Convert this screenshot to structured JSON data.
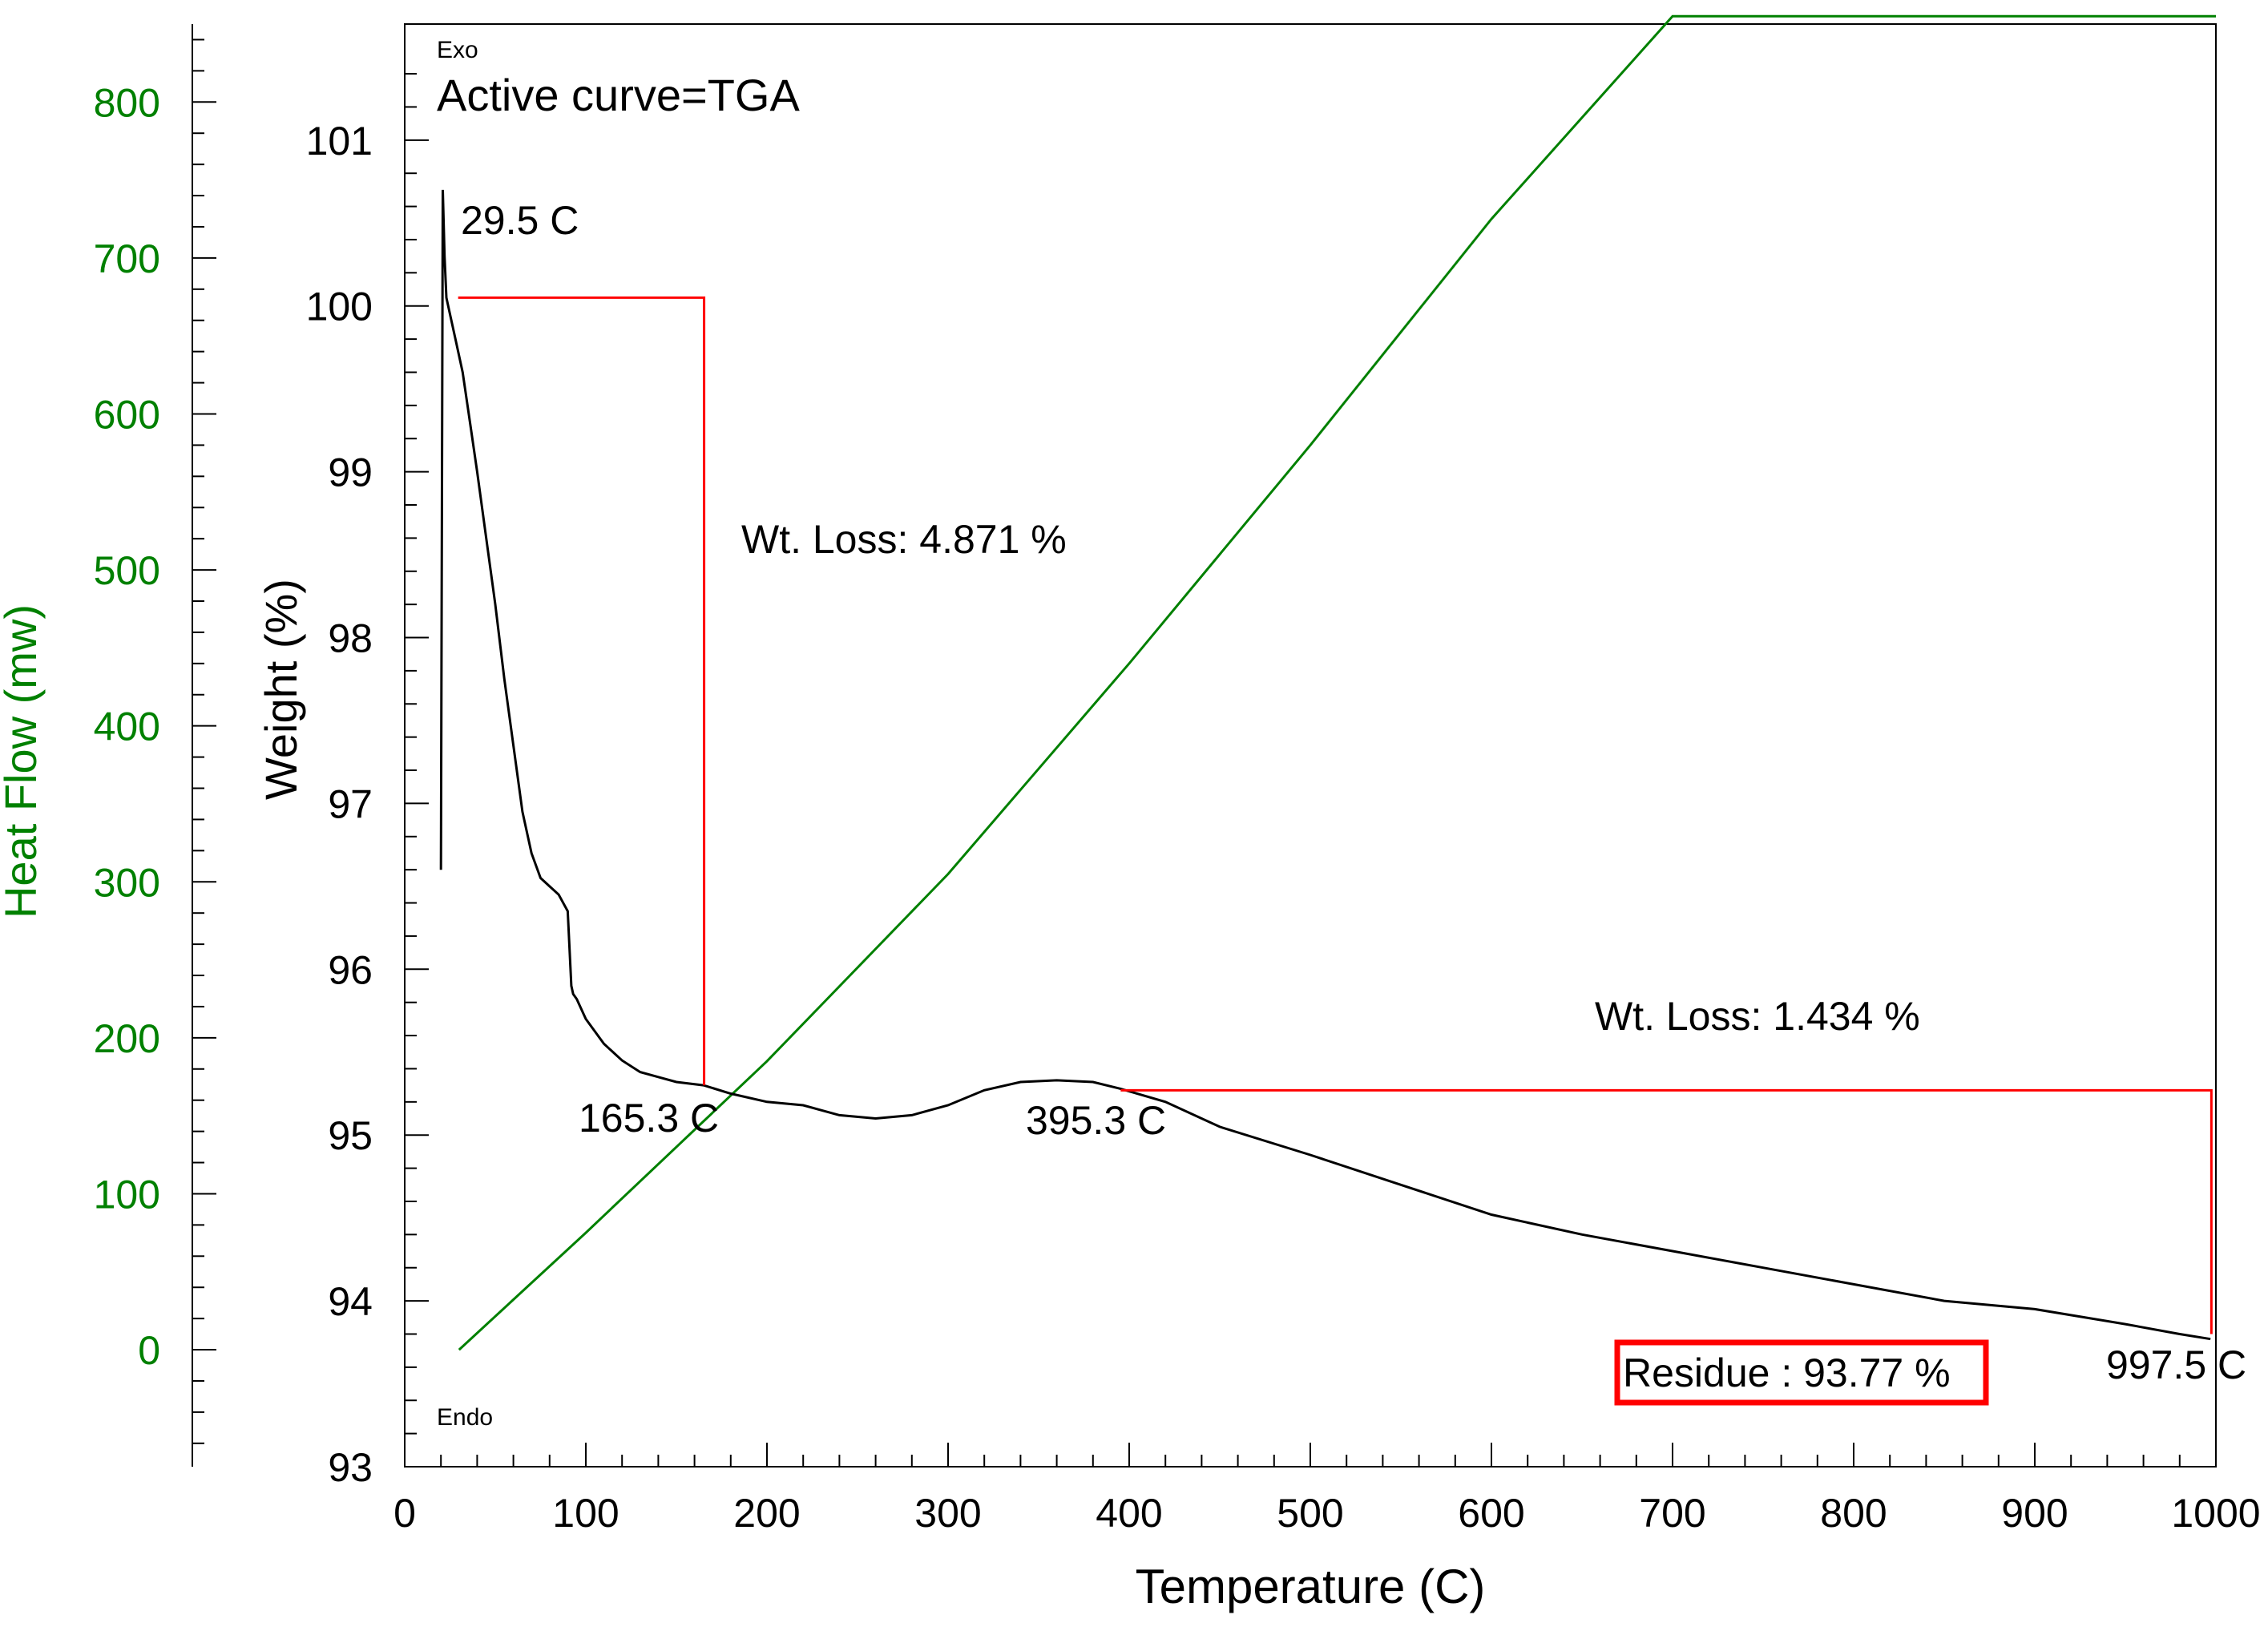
{
  "chart_data": {
    "type": "line",
    "title": "Active curve=TGA",
    "xlabel": "Temperature (C)",
    "ylabel": "Weight (%)",
    "y2label": "Heat Flow (mw)",
    "xlim": [
      0,
      1000
    ],
    "ylim": [
      93,
      101.7
    ],
    "y2lim": [
      -75,
      850
    ],
    "x_ticks": [
      0,
      100,
      200,
      300,
      400,
      500,
      600,
      700,
      800,
      900,
      1000
    ],
    "y_ticks": [
      93,
      94,
      95,
      96,
      97,
      98,
      99,
      100,
      101
    ],
    "y2_ticks": [
      0,
      100,
      200,
      300,
      400,
      500,
      600,
      700,
      800
    ],
    "exo_label": "Exo",
    "endo_label": "Endo",
    "colors": {
      "weight": "#000000",
      "heat_flow": "#008000",
      "annotation": "#ff0000",
      "axis": "#000000"
    },
    "series": [
      {
        "name": "Weight (TGA)",
        "axis": "left",
        "x": [
          20,
          21,
          22,
          23,
          25,
          28,
          32,
          36,
          40,
          45,
          50,
          55,
          60,
          65,
          70,
          75,
          80,
          85,
          90,
          92,
          93,
          95,
          100,
          110,
          120,
          130,
          140,
          150,
          165,
          180,
          200,
          220,
          240,
          260,
          280,
          300,
          320,
          340,
          360,
          380,
          395,
          420,
          450,
          500,
          550,
          600,
          650,
          700,
          750,
          800,
          850,
          900,
          950,
          980,
          997
        ],
        "y": [
          96.6,
          100.7,
          100.3,
          100.05,
          99.95,
          99.8,
          99.6,
          99.3,
          99.0,
          98.6,
          98.2,
          97.75,
          97.35,
          96.95,
          96.7,
          96.55,
          96.5,
          96.45,
          96.35,
          95.9,
          95.85,
          95.82,
          95.7,
          95.55,
          95.45,
          95.38,
          95.35,
          95.32,
          95.3,
          95.25,
          95.2,
          95.18,
          95.12,
          95.1,
          95.12,
          95.18,
          95.27,
          95.32,
          95.33,
          95.32,
          95.28,
          95.2,
          95.05,
          94.88,
          94.7,
          94.52,
          94.4,
          94.3,
          94.2,
          94.1,
          94.0,
          93.95,
          93.86,
          93.8,
          93.77
        ]
      },
      {
        "name": "Heat Flow",
        "axis": "right",
        "x": [
          30,
          100,
          200,
          300,
          400,
          500,
          600,
          700,
          720,
          1000
        ],
        "y": [
          0,
          75,
          185,
          305,
          440,
          580,
          725,
          855,
          855,
          855
        ]
      }
    ],
    "annotations": [
      {
        "id": "onset1",
        "text": "29.5 C"
      },
      {
        "id": "end1",
        "text": "165.3 C"
      },
      {
        "id": "loss1",
        "text": "Wt. Loss: 4.871 %"
      },
      {
        "id": "onset2",
        "text": "395.3 C"
      },
      {
        "id": "end2",
        "text": "997.5 C"
      },
      {
        "id": "loss2",
        "text": "Wt. Loss: 1.434 %"
      },
      {
        "id": "residue",
        "text": "Residue : 93.77 %"
      }
    ],
    "step1": {
      "x_start": 29.5,
      "y_start": 100.05,
      "x_end": 165.3,
      "y_end": 95.3
    },
    "step2": {
      "x_start": 395.3,
      "y_start": 95.27,
      "x_end": 997.5,
      "y_end": 93.8
    }
  }
}
